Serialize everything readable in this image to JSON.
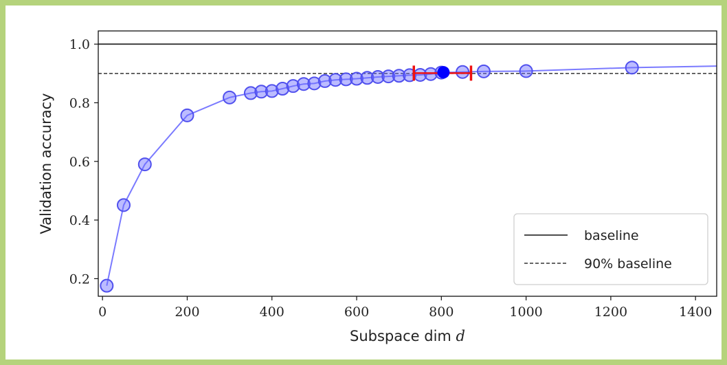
{
  "chart_data": {
    "type": "line",
    "xlabel": "Subspace dim",
    "xlabel_var": "d",
    "ylabel": "Validation accuracy",
    "xlim": [
      -10,
      1450
    ],
    "ylim": [
      0.14,
      1.045
    ],
    "xticks": [
      0,
      200,
      400,
      600,
      800,
      1000,
      1200,
      1400
    ],
    "yticks": [
      0.2,
      0.4,
      0.6,
      0.8,
      1.0
    ],
    "xtick_labels": [
      "0",
      "200",
      "400",
      "600",
      "800",
      "1000",
      "1200",
      "1400"
    ],
    "ytick_labels": [
      "0.2",
      "0.4",
      "0.6",
      "0.8",
      "1.0"
    ],
    "grid": false,
    "legend": {
      "position": "bottom-right",
      "entries": [
        "baseline",
        "90% baseline"
      ]
    },
    "baseline": 1.0,
    "baseline_90": 0.9,
    "series": [
      {
        "color": "#6b6bff",
        "x": [
          10,
          50,
          100,
          200,
          300,
          350,
          375,
          400,
          425,
          450,
          475,
          500,
          525,
          550,
          575,
          600,
          625,
          650,
          675,
          700,
          725,
          750,
          775,
          800,
          850,
          900,
          1000,
          1250,
          1450
        ],
        "y": [
          0.176,
          0.451,
          0.59,
          0.757,
          0.818,
          0.833,
          0.838,
          0.84,
          0.848,
          0.857,
          0.864,
          0.866,
          0.874,
          0.878,
          0.88,
          0.882,
          0.885,
          0.888,
          0.89,
          0.892,
          0.894,
          0.895,
          0.898,
          0.903,
          0.905,
          0.907,
          0.908,
          0.92,
          0.925
        ],
        "marker_count": 28
      }
    ],
    "highlight_point": {
      "x": 805,
      "y": 0.904,
      "color": "#0000ff"
    },
    "error_bar": {
      "x_low": 735,
      "x_high": 870,
      "y": 0.901,
      "color": "#ee1111"
    }
  }
}
